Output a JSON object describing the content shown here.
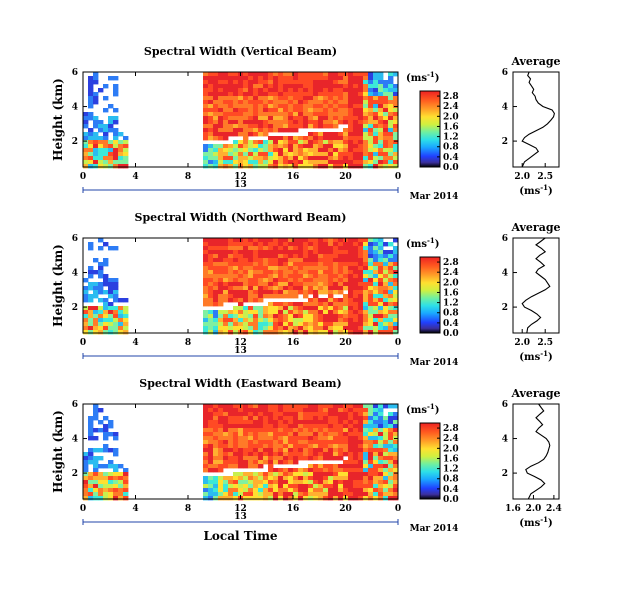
{
  "chart_data": [
    {
      "type": "heatmap",
      "title": "Spectral Width (Vertical Beam)",
      "ylabel": "Height (km)",
      "xlabel": "",
      "x_ticks": [
        "0",
        "4",
        "8",
        "12",
        "16",
        "20",
        "0"
      ],
      "y_ticks": [
        "2",
        "4",
        "6"
      ],
      "xlim": [
        0,
        24
      ],
      "ylim": [
        0.5,
        6
      ],
      "colorbar": {
        "unit": "(ms",
        "unit_sup": "-1",
        "unit_close": ")",
        "ticks": [
          "0.0",
          "0.4",
          "0.8",
          "1.2",
          "1.6",
          "2.0",
          "2.4",
          "2.8"
        ],
        "range": [
          0.0,
          3.0
        ]
      },
      "date_label": "13",
      "month_label": "Mar 2014",
      "average": {
        "title": "Average",
        "xlabel": "(ms",
        "xlabel_sup": "-1",
        "xlabel_close": ")",
        "x_ticks": [
          "2.0",
          "2.5"
        ],
        "xlim": [
          1.8,
          2.8
        ],
        "y_ticks": [
          "2",
          "4",
          "6"
        ],
        "ylim": [
          0.5,
          6
        ],
        "profile": [
          [
            0.5,
            2.0
          ],
          [
            0.8,
            2.05
          ],
          [
            1.0,
            2.15
          ],
          [
            1.2,
            2.25
          ],
          [
            1.4,
            2.35
          ],
          [
            1.6,
            2.3
          ],
          [
            1.8,
            2.15
          ],
          [
            2.0,
            2.0
          ],
          [
            2.2,
            2.05
          ],
          [
            2.4,
            2.15
          ],
          [
            2.6,
            2.3
          ],
          [
            2.8,
            2.45
          ],
          [
            3.0,
            2.55
          ],
          [
            3.2,
            2.62
          ],
          [
            3.4,
            2.68
          ],
          [
            3.6,
            2.7
          ],
          [
            3.8,
            2.65
          ],
          [
            4.0,
            2.45
          ],
          [
            4.2,
            2.35
          ],
          [
            4.4,
            2.3
          ],
          [
            4.6,
            2.28
          ],
          [
            4.8,
            2.22
          ],
          [
            5.0,
            2.25
          ],
          [
            5.2,
            2.2
          ],
          [
            5.4,
            2.15
          ],
          [
            5.6,
            2.18
          ],
          [
            5.8,
            2.12
          ],
          [
            6.0,
            2.15
          ]
        ]
      }
    },
    {
      "type": "heatmap",
      "title": "Spectral Width (Northward Beam)",
      "ylabel": "Height (km)",
      "xlabel": "",
      "x_ticks": [
        "0",
        "4",
        "8",
        "12",
        "16",
        "20",
        "0"
      ],
      "y_ticks": [
        "2",
        "4",
        "6"
      ],
      "xlim": [
        0,
        24
      ],
      "ylim": [
        0.5,
        6
      ],
      "colorbar": {
        "unit": "(ms",
        "unit_sup": "-1",
        "unit_close": ")",
        "ticks": [
          "0.0",
          "0.4",
          "0.8",
          "1.2",
          "1.6",
          "2.0",
          "2.4",
          "2.8"
        ],
        "range": [
          0.0,
          3.0
        ]
      },
      "date_label": "13",
      "month_label": "Mar 2014",
      "average": {
        "title": "Average",
        "xlabel": "(ms",
        "xlabel_sup": "-1",
        "xlabel_close": ")",
        "x_ticks": [
          "2.0",
          "2.5"
        ],
        "xlim": [
          1.8,
          2.8
        ],
        "y_ticks": [
          "2",
          "4",
          "6"
        ],
        "ylim": [
          0.5,
          6
        ],
        "profile": [
          [
            0.5,
            2.1
          ],
          [
            0.8,
            2.12
          ],
          [
            1.0,
            2.2
          ],
          [
            1.2,
            2.32
          ],
          [
            1.4,
            2.4
          ],
          [
            1.6,
            2.32
          ],
          [
            1.8,
            2.2
          ],
          [
            2.0,
            2.05
          ],
          [
            2.2,
            2.0
          ],
          [
            2.4,
            2.08
          ],
          [
            2.6,
            2.2
          ],
          [
            2.8,
            2.35
          ],
          [
            3.0,
            2.5
          ],
          [
            3.2,
            2.6
          ],
          [
            3.4,
            2.55
          ],
          [
            3.6,
            2.5
          ],
          [
            3.8,
            2.4
          ],
          [
            4.0,
            2.3
          ],
          [
            4.2,
            2.35
          ],
          [
            4.4,
            2.48
          ],
          [
            4.6,
            2.4
          ],
          [
            4.8,
            2.3
          ],
          [
            5.0,
            2.38
          ],
          [
            5.2,
            2.5
          ],
          [
            5.4,
            2.42
          ],
          [
            5.6,
            2.3
          ],
          [
            5.8,
            2.4
          ],
          [
            6.0,
            2.5
          ]
        ]
      }
    },
    {
      "type": "heatmap",
      "title": "Spectral Width (Eastward Beam)",
      "ylabel": "Height (km)",
      "xlabel": "Local Time",
      "x_ticks": [
        "0",
        "4",
        "8",
        "12",
        "16",
        "20",
        "0"
      ],
      "y_ticks": [
        "2",
        "4",
        "6"
      ],
      "xlim": [
        0,
        24
      ],
      "ylim": [
        0.5,
        6
      ],
      "colorbar": {
        "unit": "(ms",
        "unit_sup": "-1",
        "unit_close": ")",
        "ticks": [
          "0.0",
          "0.4",
          "0.8",
          "1.2",
          "1.6",
          "2.0",
          "2.4",
          "2.8"
        ],
        "range": [
          0.0,
          3.0
        ]
      },
      "date_label": "13",
      "month_label": "Mar 2014",
      "average": {
        "title": "Average",
        "xlabel": "(ms",
        "xlabel_sup": "-1",
        "xlabel_close": ")",
        "x_ticks": [
          "1.6",
          "2.0",
          "2.4"
        ],
        "xlim": [
          1.6,
          2.5
        ],
        "y_ticks": [
          "2",
          "4",
          "6"
        ],
        "ylim": [
          0.5,
          6
        ],
        "profile": [
          [
            0.5,
            1.9
          ],
          [
            0.8,
            1.95
          ],
          [
            1.0,
            2.05
          ],
          [
            1.2,
            2.15
          ],
          [
            1.4,
            2.22
          ],
          [
            1.6,
            2.15
          ],
          [
            1.8,
            2.02
          ],
          [
            2.0,
            1.88
          ],
          [
            2.2,
            1.85
          ],
          [
            2.4,
            1.95
          ],
          [
            2.6,
            2.1
          ],
          [
            2.8,
            2.2
          ],
          [
            3.0,
            2.25
          ],
          [
            3.2,
            2.28
          ],
          [
            3.4,
            2.3
          ],
          [
            3.6,
            2.32
          ],
          [
            3.8,
            2.3
          ],
          [
            4.0,
            2.25
          ],
          [
            4.2,
            2.15
          ],
          [
            4.4,
            2.05
          ],
          [
            4.6,
            2.1
          ],
          [
            4.8,
            2.18
          ],
          [
            5.0,
            2.12
          ],
          [
            5.2,
            2.05
          ],
          [
            5.4,
            2.12
          ],
          [
            5.6,
            2.2
          ],
          [
            5.8,
            2.15
          ],
          [
            6.0,
            2.1
          ]
        ]
      }
    }
  ]
}
